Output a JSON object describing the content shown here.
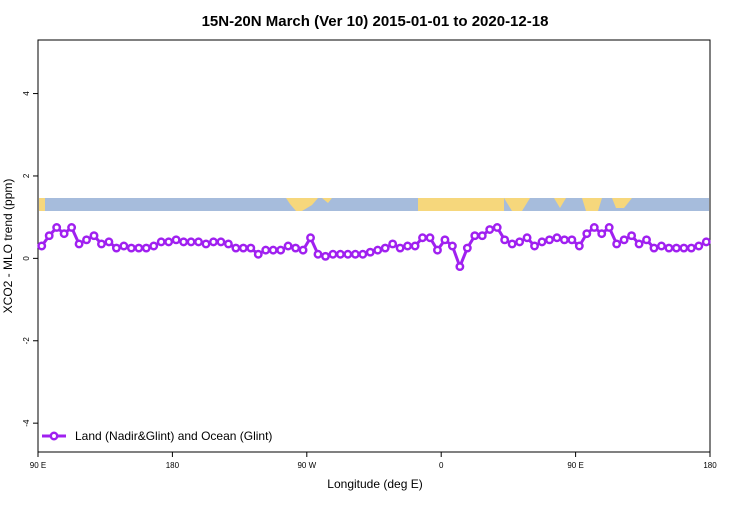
{
  "chart_data": {
    "type": "line",
    "title": "15N-20N March (Ver 10)   2015-01-01 to 2020-12-18",
    "x_label": "Longitude (deg E)",
    "y_label": "XCO2 - MLO trend (ppm)",
    "xlim": [
      90,
      540
    ],
    "xticks": [
      {
        "value": 90,
        "label": "90 E"
      },
      180,
      {
        "value": 270,
        "label": "90 W"
      },
      {
        "value": 360,
        "label": "0"
      },
      {
        "value": 450,
        "label": "90 E"
      },
      {
        "value": 540,
        "label": "180"
      }
    ],
    "ylim": [
      -4.7,
      5.3
    ],
    "yticks": [
      4,
      2,
      0,
      -2,
      -4
    ],
    "legend": "bottom-left",
    "x": [
      92.5,
      97.5,
      102.5,
      107.5,
      112.5,
      117.5,
      122.5,
      127.5,
      132.5,
      137.5,
      142.5,
      147.5,
      152.5,
      157.5,
      162.5,
      167.5,
      172.5,
      177.5,
      182.5,
      187.5,
      192.5,
      197.5,
      202.5,
      207.5,
      212.5,
      217.5,
      222.5,
      227.5,
      232.5,
      237.5,
      242.5,
      247.5,
      252.5,
      257.5,
      262.5,
      267.5,
      272.5,
      277.5,
      282.5,
      287.5,
      292.5,
      297.5,
      302.5,
      307.5,
      312.5,
      317.5,
      322.5,
      327.5,
      332.5,
      337.5,
      342.5,
      347.5,
      352.5,
      357.5,
      362.5,
      367.5,
      372.5,
      377.5,
      382.5,
      387.5,
      392.5,
      397.5,
      402.5,
      407.5,
      412.5,
      417.5,
      422.5,
      427.5,
      432.5,
      437.5,
      442.5,
      447.5,
      452.5,
      457.5,
      462.5,
      467.5,
      472.5,
      477.5,
      482.5,
      487.5,
      492.5,
      497.5,
      502.5,
      507.5,
      512.5,
      517.5,
      522.5,
      527.5,
      532.5,
      537.5
    ],
    "series": [
      {
        "name": "Land (Nadir&Glint) and Ocean (Glint)",
        "color": "#a020f0",
        "values": [
          0.3,
          0.55,
          0.75,
          0.6,
          0.75,
          0.35,
          0.45,
          0.55,
          0.35,
          0.4,
          0.25,
          0.3,
          0.25,
          0.25,
          0.25,
          0.3,
          0.4,
          0.4,
          0.45,
          0.4,
          0.4,
          0.4,
          0.35,
          0.4,
          0.4,
          0.35,
          0.25,
          0.25,
          0.25,
          0.1,
          0.2,
          0.2,
          0.2,
          0.3,
          0.25,
          0.2,
          0.5,
          0.1,
          0.05,
          0.1,
          0.1,
          0.1,
          0.1,
          0.1,
          0.15,
          0.2,
          0.25,
          0.35,
          0.25,
          0.3,
          0.3,
          0.5,
          0.5,
          0.2,
          0.45,
          0.3,
          -0.2,
          0.25,
          0.55,
          0.55,
          0.7,
          0.75,
          0.45,
          0.35,
          0.4,
          0.5,
          0.3,
          0.4,
          0.45,
          0.5,
          0.45,
          0.45,
          0.3,
          0.6,
          0.75,
          0.6,
          0.75,
          0.35,
          0.45,
          0.55,
          0.35,
          0.45,
          0.25,
          0.3,
          0.25,
          0.25,
          0.25,
          0.25,
          0.3,
          0.4
        ]
      }
    ]
  }
}
